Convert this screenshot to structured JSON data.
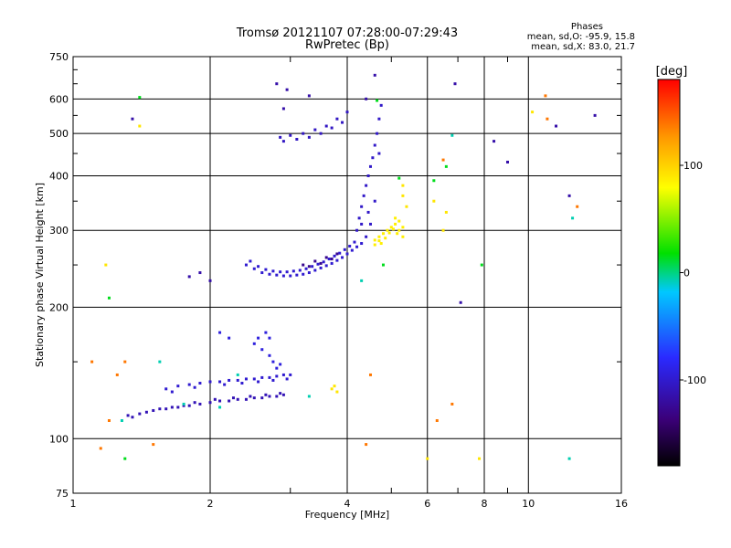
{
  "chart_data": {
    "type": "scatter",
    "title": "Tromsø 20121107 07:28:00-07:29:43",
    "subtitle": "RwPretec (Bp)",
    "xlabel": "Frequency [MHz]",
    "ylabel": "Stationary phase Virtual Height [km]",
    "x_scale": "log",
    "y_scale": "log",
    "xlim": [
      1,
      16
    ],
    "ylim": [
      75,
      750
    ],
    "x_ticks": [
      1,
      2,
      4,
      6,
      8,
      10,
      16
    ],
    "y_ticks": [
      75,
      100,
      200,
      300,
      400,
      500,
      600,
      750
    ],
    "grid": true,
    "stats": {
      "heading": "Phases",
      "line1": "mean, sd,O: -95.9, 15.8",
      "line2": "mean, sd,X:  83.0, 21.7"
    },
    "colorbar": {
      "label": "[deg]",
      "range": [
        -180,
        180
      ],
      "ticks": [
        100,
        0,
        -100
      ],
      "colormap": [
        "#000000",
        "#3b0078",
        "#2a2aff",
        "#00c8ff",
        "#00e000",
        "#ffff00",
        "#ff9900",
        "#ff0000"
      ]
    },
    "series": [
      {
        "values": [
          [
            1.32,
            113
          ],
          [
            1.4,
            114
          ],
          [
            1.5,
            116
          ],
          [
            1.6,
            117
          ],
          [
            1.7,
            118
          ],
          [
            1.8,
            119
          ],
          [
            1.9,
            120
          ],
          [
            2.0,
            121
          ],
          [
            2.1,
            122
          ],
          [
            2.2,
            122
          ],
          [
            2.3,
            123
          ],
          [
            2.4,
            123
          ],
          [
            2.5,
            124
          ],
          [
            2.6,
            124
          ],
          [
            2.7,
            125
          ],
          [
            2.8,
            125
          ],
          [
            2.9,
            126
          ],
          [
            1.35,
            112
          ],
          [
            1.45,
            115
          ],
          [
            1.55,
            117
          ],
          [
            1.65,
            118
          ],
          [
            1.75,
            119
          ],
          [
            1.85,
            121
          ],
          [
            2.05,
            123
          ],
          [
            2.25,
            124
          ],
          [
            2.45,
            125
          ],
          [
            2.65,
            126
          ],
          [
            2.85,
            127
          ]
        ],
        "phase": -105
      },
      {
        "values": [
          [
            1.6,
            130
          ],
          [
            1.7,
            132
          ],
          [
            1.8,
            133
          ],
          [
            1.9,
            134
          ],
          [
            2.0,
            135
          ],
          [
            2.1,
            135
          ],
          [
            2.2,
            136
          ],
          [
            2.3,
            136
          ],
          [
            2.4,
            137
          ],
          [
            2.5,
            137
          ],
          [
            2.6,
            138
          ],
          [
            2.7,
            138
          ],
          [
            2.8,
            139
          ],
          [
            2.9,
            140
          ],
          [
            3.0,
            140
          ],
          [
            1.65,
            128
          ],
          [
            1.85,
            131
          ],
          [
            2.15,
            133
          ],
          [
            2.35,
            134
          ],
          [
            2.55,
            135
          ],
          [
            2.75,
            136
          ],
          [
            2.95,
            137
          ]
        ],
        "phase": -95
      },
      {
        "values": [
          [
            2.1,
            175
          ],
          [
            2.2,
            170
          ],
          [
            2.5,
            165
          ],
          [
            2.55,
            170
          ],
          [
            2.6,
            160
          ],
          [
            2.7,
            155
          ],
          [
            2.75,
            150
          ],
          [
            2.8,
            145
          ],
          [
            2.65,
            175
          ],
          [
            2.7,
            170
          ],
          [
            2.85,
            148
          ]
        ],
        "phase": -90
      },
      {
        "values": [
          [
            2.4,
            250
          ],
          [
            2.5,
            245
          ],
          [
            2.6,
            240
          ],
          [
            2.7,
            238
          ],
          [
            2.8,
            237
          ],
          [
            2.9,
            236
          ],
          [
            3.0,
            236
          ],
          [
            3.1,
            237
          ],
          [
            3.2,
            238
          ],
          [
            3.3,
            240
          ],
          [
            3.4,
            243
          ],
          [
            3.5,
            246
          ],
          [
            3.6,
            249
          ],
          [
            3.7,
            252
          ],
          [
            3.8,
            256
          ],
          [
            3.9,
            260
          ],
          [
            4.0,
            265
          ],
          [
            4.1,
            270
          ],
          [
            4.2,
            275
          ],
          [
            4.3,
            280
          ],
          [
            2.45,
            255
          ],
          [
            2.55,
            248
          ],
          [
            2.65,
            244
          ],
          [
            2.75,
            242
          ],
          [
            2.85,
            241
          ],
          [
            2.95,
            241
          ],
          [
            3.05,
            242
          ],
          [
            3.15,
            243
          ],
          [
            3.25,
            245
          ],
          [
            3.35,
            248
          ],
          [
            3.45,
            251
          ],
          [
            3.55,
            254
          ],
          [
            3.65,
            258
          ],
          [
            3.75,
            262
          ],
          [
            3.85,
            266
          ],
          [
            3.95,
            271
          ],
          [
            4.05,
            276
          ],
          [
            4.15,
            282
          ]
        ],
        "phase": -95
      },
      {
        "values": [
          [
            3.2,
            250
          ],
          [
            3.4,
            255
          ],
          [
            3.6,
            260
          ],
          [
            3.8,
            265
          ],
          [
            3.3,
            248
          ],
          [
            3.5,
            252
          ],
          [
            3.7,
            258
          ]
        ],
        "phase": -120
      },
      {
        "values": [
          [
            4.2,
            300
          ],
          [
            4.25,
            320
          ],
          [
            4.3,
            340
          ],
          [
            4.35,
            360
          ],
          [
            4.4,
            380
          ],
          [
            4.45,
            400
          ],
          [
            4.5,
            420
          ],
          [
            4.55,
            440
          ],
          [
            4.6,
            470
          ],
          [
            4.65,
            500
          ],
          [
            4.7,
            540
          ],
          [
            4.75,
            580
          ],
          [
            4.4,
            290
          ],
          [
            4.5,
            310
          ],
          [
            4.6,
            350
          ],
          [
            4.7,
            450
          ],
          [
            4.3,
            310
          ],
          [
            4.45,
            330
          ]
        ],
        "phase": -98
      },
      {
        "values": [
          [
            4.6,
            285
          ],
          [
            4.7,
            290
          ],
          [
            4.8,
            295
          ],
          [
            4.9,
            300
          ],
          [
            5.0,
            305
          ],
          [
            5.1,
            310
          ],
          [
            5.2,
            300
          ],
          [
            5.3,
            290
          ],
          [
            4.75,
            280
          ],
          [
            4.85,
            288
          ],
          [
            4.95,
            296
          ],
          [
            5.05,
            302
          ],
          [
            5.15,
            295
          ],
          [
            4.6,
            278
          ],
          [
            4.7,
            284
          ],
          [
            5.2,
            315
          ],
          [
            5.3,
            305
          ],
          [
            5.1,
            320
          ]
        ],
        "phase": 85
      },
      {
        "values": [
          [
            2.85,
            490
          ],
          [
            3.0,
            495
          ],
          [
            3.2,
            500
          ],
          [
            3.4,
            510
          ],
          [
            3.6,
            520
          ],
          [
            3.8,
            540
          ],
          [
            4.0,
            560
          ],
          [
            2.9,
            480
          ],
          [
            3.1,
            485
          ],
          [
            3.3,
            490
          ],
          [
            3.5,
            500
          ],
          [
            3.7,
            515
          ],
          [
            3.9,
            530
          ]
        ],
        "phase": -100
      },
      {
        "values": [
          [
            2.8,
            650
          ],
          [
            2.95,
            630
          ],
          [
            3.3,
            610
          ],
          [
            4.6,
            680
          ],
          [
            4.4,
            600
          ],
          [
            6.9,
            650
          ],
          [
            1.35,
            540
          ],
          [
            14.0,
            550
          ],
          [
            2.9,
            570
          ],
          [
            1.9,
            240
          ],
          [
            1.8,
            235
          ],
          [
            2.0,
            230
          ],
          [
            7.1,
            205
          ],
          [
            9.0,
            430
          ],
          [
            11.5,
            520
          ],
          [
            12.3,
            360
          ],
          [
            8.4,
            480
          ]
        ],
        "phase": -110
      },
      {
        "values": [
          [
            5.3,
            380
          ],
          [
            5.4,
            340
          ],
          [
            6.2,
            350
          ],
          [
            6.6,
            330
          ],
          [
            6.5,
            300
          ],
          [
            7.8,
            90
          ],
          [
            6.0,
            90
          ],
          [
            1.18,
            250
          ],
          [
            1.4,
            520
          ],
          [
            10.2,
            560
          ],
          [
            3.7,
            130
          ],
          [
            3.75,
            132
          ],
          [
            3.8,
            128
          ],
          [
            5.3,
            360
          ]
        ],
        "phase": 90
      },
      {
        "values": [
          [
            1.2,
            110
          ],
          [
            1.25,
            140
          ],
          [
            1.3,
            150
          ],
          [
            1.5,
            97
          ],
          [
            1.15,
            95
          ],
          [
            1.1,
            150
          ],
          [
            4.4,
            97
          ],
          [
            4.5,
            140
          ],
          [
            6.8,
            120
          ],
          [
            6.3,
            110
          ],
          [
            11.0,
            540
          ],
          [
            10.9,
            610
          ],
          [
            12.8,
            340
          ],
          [
            6.5,
            435
          ]
        ],
        "phase": 140
      },
      {
        "values": [
          [
            1.4,
            605
          ],
          [
            1.3,
            90
          ],
          [
            4.65,
            595
          ],
          [
            5.2,
            395
          ],
          [
            6.2,
            390
          ],
          [
            1.2,
            210
          ],
          [
            4.8,
            250
          ],
          [
            6.6,
            420
          ],
          [
            7.9,
            250
          ]
        ],
        "phase": 20
      },
      {
        "values": [
          [
            1.55,
            150
          ],
          [
            1.75,
            120
          ],
          [
            2.1,
            118
          ],
          [
            4.3,
            230
          ],
          [
            12.3,
            90
          ],
          [
            12.5,
            320
          ],
          [
            6.8,
            495
          ],
          [
            1.28,
            110
          ],
          [
            2.3,
            140
          ],
          [
            3.3,
            125
          ]
        ],
        "phase": -10
      }
    ]
  }
}
